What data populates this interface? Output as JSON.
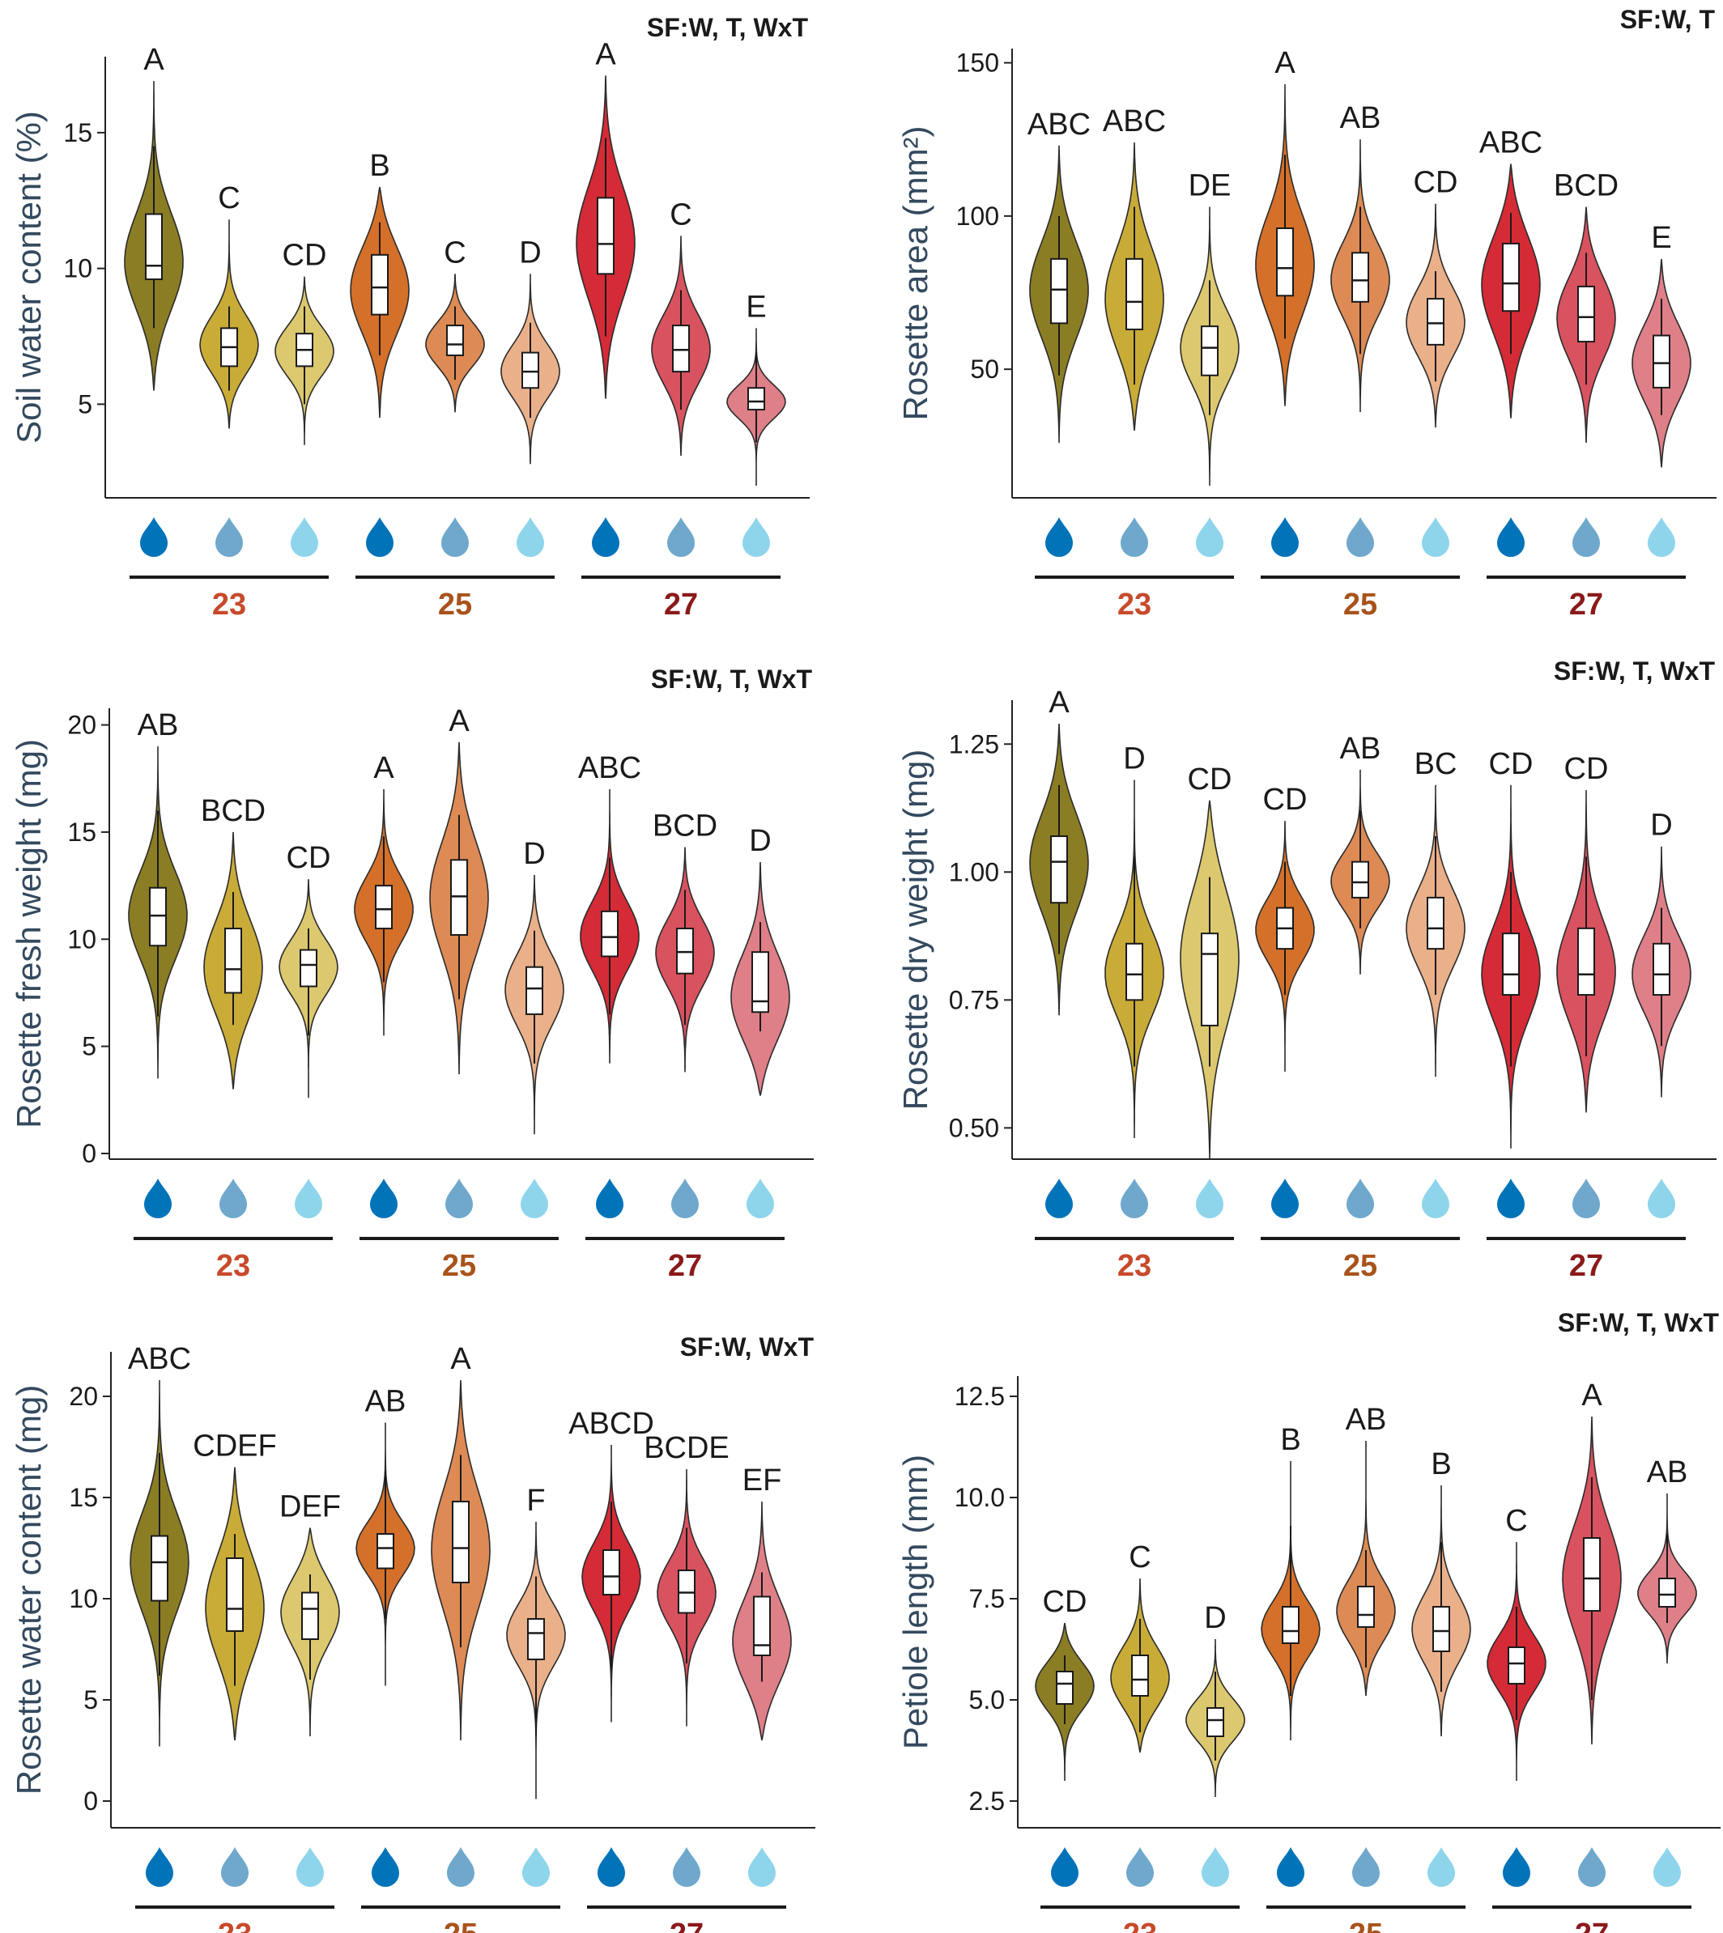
{
  "palette": {
    "treatment_colors": [
      "#8a7d24",
      "#c9ab38",
      "#dcc86e",
      "#d4702a",
      "#dd8a55",
      "#eab08a",
      "#d42b37",
      "#d9525f",
      "#df7f88"
    ],
    "drop_colors": [
      "#0073b9",
      "#6fa8cc",
      "#8ed5ec"
    ],
    "group_label_colors": [
      "#c84a2b",
      "#a8531c",
      "#8b1a1a"
    ]
  },
  "groups": [
    "23",
    "25",
    "27"
  ],
  "drop_icons": [
    "water-drop-icon",
    "water-drop-icon",
    "water-drop-icon"
  ],
  "chart_data": [
    {
      "type": "violin",
      "id": "swc",
      "ylabel": "Soil water content (%)",
      "sf": "SF:W, T, WxT",
      "ylim": [
        2,
        17.5
      ],
      "yticks": [
        5,
        10,
        15
      ],
      "ticklabels": [
        "5",
        "10",
        "15"
      ],
      "letters": [
        "A",
        "C",
        "CD",
        "B",
        "C",
        "D",
        "A",
        "C",
        "E"
      ],
      "stats": [
        {
          "q1": 9.6,
          "median": 10.1,
          "q3": 12.0,
          "wlo": 7.8,
          "whi": 14.5,
          "vmin": 5.5,
          "vmax": 16.9
        },
        {
          "q1": 6.4,
          "median": 7.1,
          "q3": 7.8,
          "wlo": 5.5,
          "whi": 8.6,
          "vmin": 4.1,
          "vmax": 11.8
        },
        {
          "q1": 6.4,
          "median": 7.0,
          "q3": 7.6,
          "wlo": 5.0,
          "whi": 8.6,
          "vmin": 3.5,
          "vmax": 9.7
        },
        {
          "q1": 8.3,
          "median": 9.3,
          "q3": 10.5,
          "wlo": 6.8,
          "whi": 11.7,
          "vmin": 4.5,
          "vmax": 13.0
        },
        {
          "q1": 6.8,
          "median": 7.2,
          "q3": 7.9,
          "wlo": 5.9,
          "whi": 8.6,
          "vmin": 4.7,
          "vmax": 9.8
        },
        {
          "q1": 5.6,
          "median": 6.2,
          "q3": 6.9,
          "wlo": 4.5,
          "whi": 8.0,
          "vmin": 2.8,
          "vmax": 9.8
        },
        {
          "q1": 9.8,
          "median": 10.9,
          "q3": 12.6,
          "wlo": 7.5,
          "whi": 14.8,
          "vmin": 5.2,
          "vmax": 17.1
        },
        {
          "q1": 6.2,
          "median": 7.0,
          "q3": 7.9,
          "wlo": 4.8,
          "whi": 9.2,
          "vmin": 3.1,
          "vmax": 11.2
        },
        {
          "q1": 4.8,
          "median": 5.1,
          "q3": 5.6,
          "wlo": 3.6,
          "whi": 6.9,
          "vmin": 2.0,
          "vmax": 7.8
        }
      ]
    },
    {
      "type": "violin",
      "id": "area",
      "ylabel": "Rosette area (mm²)",
      "sf": "SF:W, T",
      "ylim": [
        12,
        152
      ],
      "yticks": [
        50,
        100,
        150
      ],
      "ticklabels": [
        "50",
        "100",
        "150"
      ],
      "letters": [
        "ABC",
        "ABC",
        "DE",
        "A",
        "AB",
        "CD",
        "ABC",
        "BCD",
        "E"
      ],
      "stats": [
        {
          "q1": 65,
          "median": 76,
          "q3": 86,
          "wlo": 48,
          "whi": 100,
          "vmin": 26,
          "vmax": 123
        },
        {
          "q1": 63,
          "median": 72,
          "q3": 86,
          "wlo": 45,
          "whi": 103,
          "vmin": 30,
          "vmax": 124
        },
        {
          "q1": 48,
          "median": 57,
          "q3": 64,
          "wlo": 35,
          "whi": 79,
          "vmin": 12,
          "vmax": 103
        },
        {
          "q1": 74,
          "median": 83,
          "q3": 96,
          "wlo": 60,
          "whi": 120,
          "vmin": 38,
          "vmax": 143
        },
        {
          "q1": 72,
          "median": 79,
          "q3": 88,
          "wlo": 55,
          "whi": 103,
          "vmin": 36,
          "vmax": 125
        },
        {
          "q1": 58,
          "median": 65,
          "q3": 73,
          "wlo": 46,
          "whi": 82,
          "vmin": 31,
          "vmax": 104
        },
        {
          "q1": 69,
          "median": 78,
          "q3": 91,
          "wlo": 55,
          "whi": 101,
          "vmin": 34,
          "vmax": 117
        },
        {
          "q1": 59,
          "median": 67,
          "q3": 77,
          "wlo": 45,
          "whi": 88,
          "vmin": 26,
          "vmax": 103
        },
        {
          "q1": 44,
          "median": 52,
          "q3": 61,
          "wlo": 35,
          "whi": 73,
          "vmin": 18,
          "vmax": 86
        }
      ]
    },
    {
      "type": "violin",
      "id": "fresh",
      "ylabel": "Rosette fresh weight (mg)",
      "sf": "SF:W, T, WxT",
      "ylim": [
        0,
        20.4
      ],
      "yticks": [
        0,
        5,
        10,
        15,
        20
      ],
      "ticklabels": [
        "0",
        "5",
        "10",
        "15",
        "20"
      ],
      "letters": [
        "AB",
        "BCD",
        "CD",
        "A",
        "A",
        "D",
        "ABC",
        "BCD",
        "D"
      ],
      "stats": [
        {
          "q1": 9.7,
          "median": 11.1,
          "q3": 12.4,
          "wlo": 6.4,
          "whi": 16.0,
          "vmin": 3.5,
          "vmax": 19.0
        },
        {
          "q1": 7.5,
          "median": 8.6,
          "q3": 10.5,
          "wlo": 6.0,
          "whi": 12.2,
          "vmin": 3.0,
          "vmax": 15.0
        },
        {
          "q1": 7.8,
          "median": 8.8,
          "q3": 9.5,
          "wlo": 5.5,
          "whi": 10.5,
          "vmin": 2.6,
          "vmax": 12.8
        },
        {
          "q1": 10.5,
          "median": 11.4,
          "q3": 12.5,
          "wlo": 8.0,
          "whi": 14.8,
          "vmin": 5.5,
          "vmax": 17.0
        },
        {
          "q1": 10.2,
          "median": 12.0,
          "q3": 13.7,
          "wlo": 7.2,
          "whi": 15.8,
          "vmin": 3.7,
          "vmax": 19.2
        },
        {
          "q1": 6.5,
          "median": 7.7,
          "q3": 8.7,
          "wlo": 4.2,
          "whi": 10.4,
          "vmin": 0.9,
          "vmax": 13.0
        },
        {
          "q1": 9.2,
          "median": 10.1,
          "q3": 11.3,
          "wlo": 6.5,
          "whi": 13.8,
          "vmin": 4.2,
          "vmax": 17.0
        },
        {
          "q1": 8.4,
          "median": 9.4,
          "q3": 10.5,
          "wlo": 6.0,
          "whi": 12.3,
          "vmin": 3.8,
          "vmax": 14.3
        },
        {
          "q1": 6.6,
          "median": 7.1,
          "q3": 9.4,
          "wlo": 5.7,
          "whi": 10.8,
          "vmin": 2.7,
          "vmax": 13.6
        }
      ]
    },
    {
      "type": "violin",
      "id": "dry",
      "ylabel": "Rosette dry weight (mg)",
      "sf": "SF:W, T, WxT",
      "ylim": [
        0.45,
        1.32
      ],
      "yticks": [
        0.5,
        0.75,
        1.0,
        1.25
      ],
      "ticklabels": [
        "0.50",
        "0.75",
        "1.00",
        "1.25"
      ],
      "letters": [
        "A",
        "D",
        "CD",
        "CD",
        "AB",
        "BC",
        "CD",
        "CD",
        "D"
      ],
      "stats": [
        {
          "q1": 0.94,
          "median": 1.02,
          "q3": 1.07,
          "wlo": 0.84,
          "whi": 1.17,
          "vmin": 0.72,
          "vmax": 1.29
        },
        {
          "q1": 0.75,
          "median": 0.8,
          "q3": 0.86,
          "wlo": 0.62,
          "whi": 1.03,
          "vmin": 0.48,
          "vmax": 1.18
        },
        {
          "q1": 0.7,
          "median": 0.84,
          "q3": 0.88,
          "wlo": 0.62,
          "whi": 0.99,
          "vmin": 0.44,
          "vmax": 1.14
        },
        {
          "q1": 0.85,
          "median": 0.89,
          "q3": 0.93,
          "wlo": 0.76,
          "whi": 1.02,
          "vmin": 0.61,
          "vmax": 1.1
        },
        {
          "q1": 0.95,
          "median": 0.98,
          "q3": 1.02,
          "wlo": 0.89,
          "whi": 1.12,
          "vmin": 0.8,
          "vmax": 1.2
        },
        {
          "q1": 0.85,
          "median": 0.89,
          "q3": 0.95,
          "wlo": 0.76,
          "whi": 1.07,
          "vmin": 0.6,
          "vmax": 1.17
        },
        {
          "q1": 0.76,
          "median": 0.8,
          "q3": 0.88,
          "wlo": 0.62,
          "whi": 1.0,
          "vmin": 0.46,
          "vmax": 1.17
        },
        {
          "q1": 0.76,
          "median": 0.8,
          "q3": 0.89,
          "wlo": 0.64,
          "whi": 1.03,
          "vmin": 0.53,
          "vmax": 1.16
        },
        {
          "q1": 0.76,
          "median": 0.8,
          "q3": 0.86,
          "wlo": 0.66,
          "whi": 0.93,
          "vmin": 0.56,
          "vmax": 1.05
        }
      ]
    },
    {
      "type": "violin",
      "id": "rwc",
      "ylabel": "Rosette water content (mg)",
      "sf": "SF:W, WxT",
      "ylim": [
        -1,
        21.8
      ],
      "yticks": [
        0,
        5,
        10,
        15,
        20
      ],
      "ticklabels": [
        "0",
        "5",
        "10",
        "15",
        "20"
      ],
      "letters": [
        "ABC",
        "CDEF",
        "DEF",
        "AB",
        "A",
        "F",
        "ABCD",
        "BCDE",
        "EF"
      ],
      "stats": [
        {
          "q1": 9.9,
          "median": 11.8,
          "q3": 13.1,
          "wlo": 6.2,
          "whi": 17.2,
          "vmin": 2.7,
          "vmax": 20.8
        },
        {
          "q1": 8.4,
          "median": 9.5,
          "q3": 12.0,
          "wlo": 5.7,
          "whi": 13.2,
          "vmin": 3.0,
          "vmax": 16.5
        },
        {
          "q1": 8.0,
          "median": 9.5,
          "q3": 10.3,
          "wlo": 6.0,
          "whi": 11.2,
          "vmin": 3.2,
          "vmax": 13.5
        },
        {
          "q1": 11.5,
          "median": 12.5,
          "q3": 13.2,
          "wlo": 9.0,
          "whi": 16.3,
          "vmin": 5.7,
          "vmax": 18.7
        },
        {
          "q1": 10.8,
          "median": 12.5,
          "q3": 14.8,
          "wlo": 7.6,
          "whi": 17.1,
          "vmin": 3.0,
          "vmax": 20.8
        },
        {
          "q1": 7.0,
          "median": 8.3,
          "q3": 9.0,
          "wlo": 3.2,
          "whi": 11.1,
          "vmin": 0.1,
          "vmax": 13.8
        },
        {
          "q1": 10.2,
          "median": 11.1,
          "q3": 12.4,
          "wlo": 6.5,
          "whi": 14.8,
          "vmin": 3.9,
          "vmax": 17.6
        },
        {
          "q1": 9.3,
          "median": 10.3,
          "q3": 11.4,
          "wlo": 6.8,
          "whi": 13.5,
          "vmin": 3.7,
          "vmax": 16.4
        },
        {
          "q1": 7.2,
          "median": 7.7,
          "q3": 10.1,
          "wlo": 5.9,
          "whi": 11.3,
          "vmin": 3.0,
          "vmax": 14.8
        }
      ]
    },
    {
      "type": "violin",
      "id": "petiole",
      "ylabel": "Petiole length (mm)",
      "sf": "SF:W, T, WxT",
      "ylim": [
        2.0,
        12.8
      ],
      "yticks": [
        2.5,
        5.0,
        7.5,
        10.0,
        12.5
      ],
      "ticklabels": [
        "2.5",
        "5.0",
        "7.5",
        "10.0",
        "12.5"
      ],
      "letters": [
        "CD",
        "C",
        "D",
        "B",
        "AB",
        "B",
        "C",
        "A",
        "AB"
      ],
      "stats": [
        {
          "q1": 4.9,
          "median": 5.4,
          "q3": 5.7,
          "wlo": 4.4,
          "whi": 6.1,
          "vmin": 3.0,
          "vmax": 6.9
        },
        {
          "q1": 5.1,
          "median": 5.5,
          "q3": 6.1,
          "wlo": 4.2,
          "whi": 7.0,
          "vmin": 3.7,
          "vmax": 8.0
        },
        {
          "q1": 4.1,
          "median": 4.5,
          "q3": 4.8,
          "wlo": 3.5,
          "whi": 5.7,
          "vmin": 2.6,
          "vmax": 6.5
        },
        {
          "q1": 6.4,
          "median": 6.7,
          "q3": 7.3,
          "wlo": 5.1,
          "whi": 9.3,
          "vmin": 4.0,
          "vmax": 10.9
        },
        {
          "q1": 6.8,
          "median": 7.1,
          "q3": 7.8,
          "wlo": 5.8,
          "whi": 8.7,
          "vmin": 5.1,
          "vmax": 11.4
        },
        {
          "q1": 6.2,
          "median": 6.7,
          "q3": 7.3,
          "wlo": 5.2,
          "whi": 8.9,
          "vmin": 4.1,
          "vmax": 10.3
        },
        {
          "q1": 5.4,
          "median": 5.9,
          "q3": 6.3,
          "wlo": 4.5,
          "whi": 7.3,
          "vmin": 3.0,
          "vmax": 8.9
        },
        {
          "q1": 7.2,
          "median": 8.0,
          "q3": 9.0,
          "wlo": 5.0,
          "whi": 10.5,
          "vmin": 3.9,
          "vmax": 12.0
        },
        {
          "q1": 7.3,
          "median": 7.6,
          "q3": 8.0,
          "wlo": 6.9,
          "whi": 9.1,
          "vmin": 5.9,
          "vmax": 10.1
        }
      ]
    }
  ]
}
